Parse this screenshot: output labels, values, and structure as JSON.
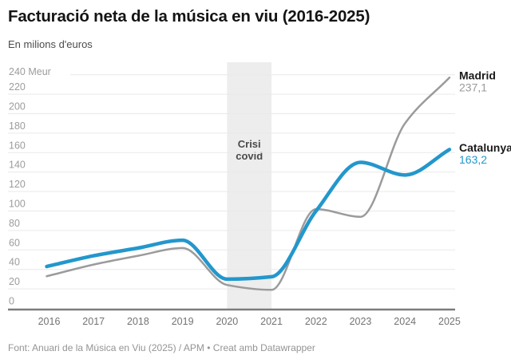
{
  "header": {
    "title": "Facturació neta de la música en viu (2016-2025)",
    "subtitle": "En milions d'euros"
  },
  "footer": {
    "text": "Font: Anuari de la Música en Viu (2025) / APM • Creat amb Datawrapper"
  },
  "chart_data": {
    "type": "line",
    "x": [
      2016,
      2017,
      2018,
      2019,
      2020,
      2021,
      2022,
      2023,
      2024,
      2025
    ],
    "x_tick_labels": [
      "2016",
      "2017",
      "2018",
      "2019",
      "2020",
      "2021",
      "2022",
      "2023",
      "2024",
      "2025"
    ],
    "series": [
      {
        "name": "Madrid",
        "values": [
          33,
          45,
          54,
          62,
          24,
          19,
          102,
          94,
          190,
          237.1
        ],
        "end_value_label": "237,1",
        "color": "#9b9b9b",
        "value_label_color": "#9b9b9b",
        "line_width": 2.5
      },
      {
        "name": "Catalunya",
        "values": [
          43,
          54,
          62,
          70,
          30,
          32.5,
          100,
          150,
          137,
          163.2
        ],
        "end_value_label": "163,2",
        "color": "#2397cc",
        "value_label_color": "#2397cc",
        "line_width": 4.5
      }
    ],
    "y_axis": {
      "min": 0,
      "max": 240,
      "step": 20,
      "unit_suffix": " Meur"
    },
    "ylim": [
      0,
      240
    ],
    "grid": true,
    "legend_position": "end-of-line-right",
    "annotation_band": {
      "from": 2020,
      "to": 2021,
      "fill": "#ededed",
      "label_lines": [
        "Crisi",
        "covid"
      ],
      "label_color": "#4a4a4a"
    },
    "colors": {
      "gridline": "#e9e9e9",
      "baseline": "#7c7c7c",
      "y_tick_label": "#9c9c9c",
      "x_tick_label": "#737373",
      "series_name_label": "#1a1a1a"
    }
  }
}
